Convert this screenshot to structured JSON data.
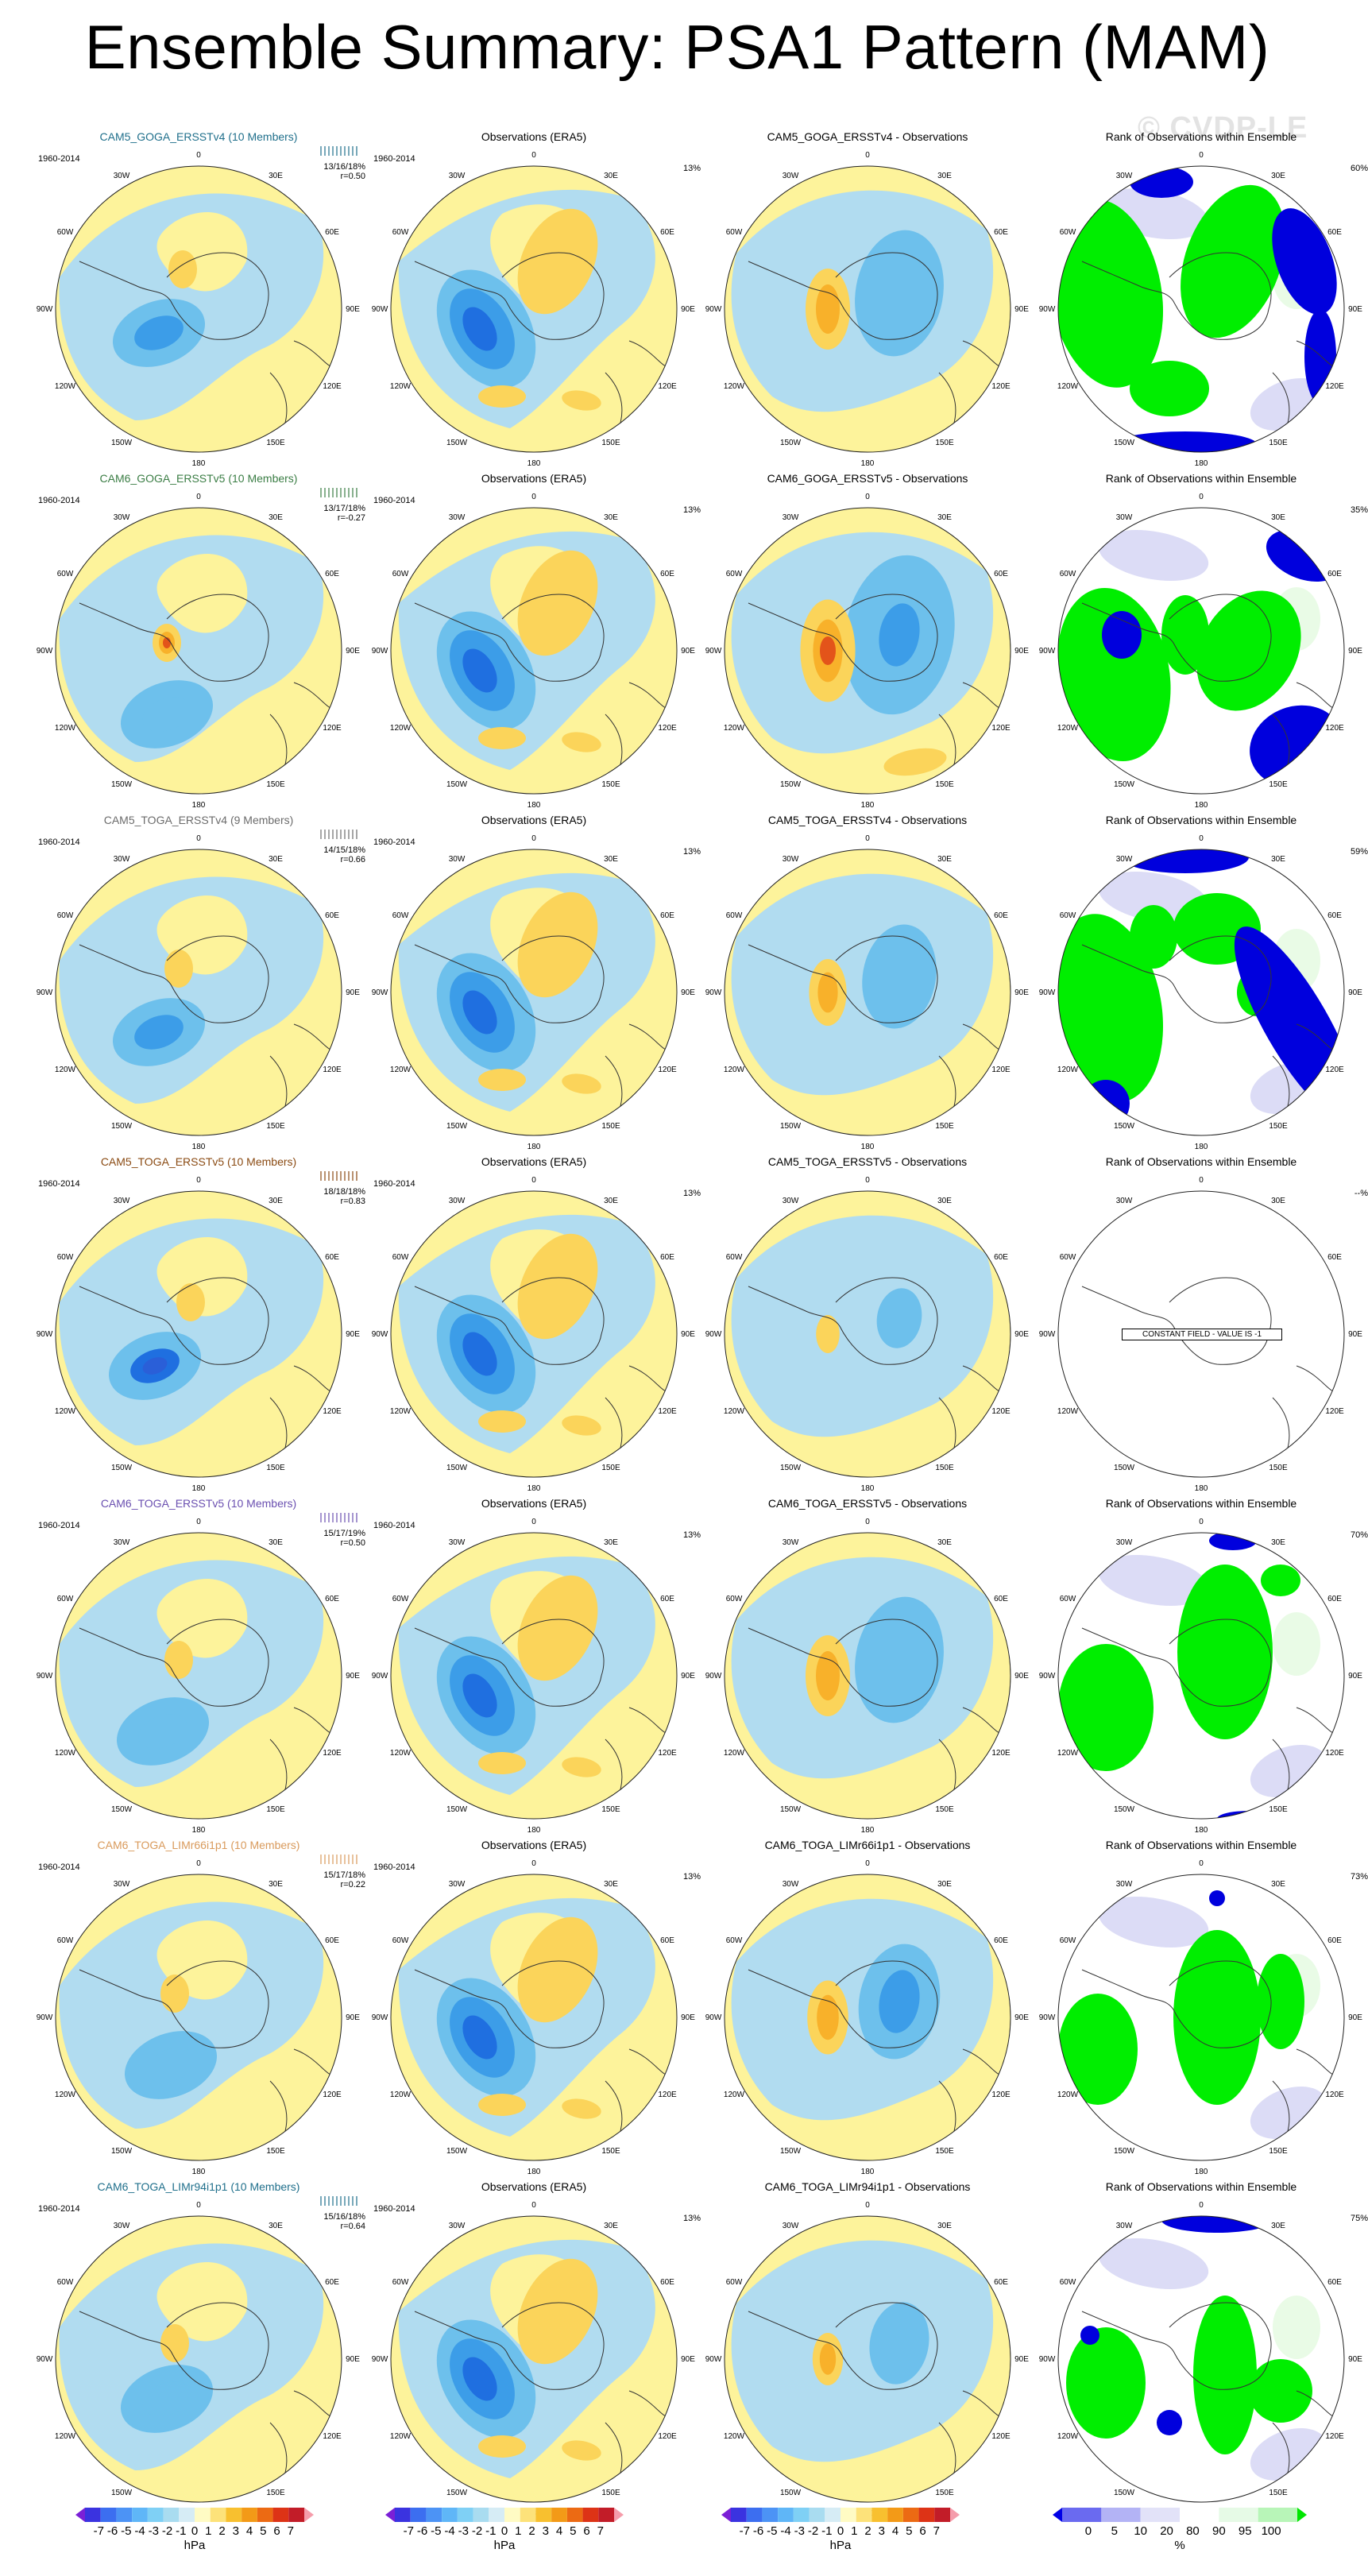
{
  "title": "Ensemble Summary: PSA1 Pattern (MAM)",
  "watermark": "© CVDP-LE",
  "period": "1960-2014",
  "obs_title": "Observations (ERA5)",
  "obs_pct": "13%",
  "rank_title": "Rank of Observations within Ensemble",
  "constant_field_text": "CONSTANT FIELD - VALUE IS -1",
  "lon_labels": [
    "0",
    "30E",
    "60E",
    "90E",
    "120E",
    "150E",
    "180",
    "150W",
    "120W",
    "90W",
    "60W",
    "30W"
  ],
  "rows": [
    {
      "model": "CAM5_GOGA_ERSSTv4 (10 Members)",
      "model_color": "#1f6f8b",
      "stats": "13/16/18%",
      "r": "r=0.50",
      "diff_title": "CAM5_GOGA_ERSSTv4 - Observations",
      "rank_pct": "60%",
      "variant": 0
    },
    {
      "model": "CAM6_GOGA_ERSSTv5 (10 Members)",
      "model_color": "#3a7d44",
      "stats": "13/17/18%",
      "r": "r=-0.27",
      "diff_title": "CAM6_GOGA_ERSSTv5 - Observations",
      "rank_pct": "35%",
      "variant": 1
    },
    {
      "model": "CAM5_TOGA_ERSSTv4 (9 Members)",
      "model_color": "#6b6b6b",
      "stats": "14/15/18%",
      "r": "r=0.66",
      "diff_title": "CAM5_TOGA_ERSSTv4 - Observations",
      "rank_pct": "59%",
      "variant": 2
    },
    {
      "model": "CAM5_TOGA_ERSSTv5 (10 Members)",
      "model_color": "#8a4a12",
      "stats": "18/18/18%",
      "r": "r=0.83",
      "diff_title": "CAM5_TOGA_ERSSTv5 - Observations",
      "rank_pct": "--%",
      "variant": 3
    },
    {
      "model": "CAM6_TOGA_ERSSTv5 (10 Members)",
      "model_color": "#6a4fb0",
      "stats": "15/17/19%",
      "r": "r=0.50",
      "diff_title": "CAM6_TOGA_ERSSTv5 - Observations",
      "rank_pct": "70%",
      "variant": 4
    },
    {
      "model": "CAM6_TOGA_LIMr66i1p1 (10 Members)",
      "model_color": "#d99a5b",
      "stats": "15/17/18%",
      "r": "r=0.22",
      "diff_title": "CAM6_TOGA_LIMr66i1p1 - Observations",
      "rank_pct": "73%",
      "variant": 5
    },
    {
      "model": "CAM6_TOGA_LIMr94i1p1 (10 Members)",
      "model_color": "#1f6f8b",
      "stats": "15/16/18%",
      "r": "r=0.64",
      "diff_title": "CAM6_TOGA_LIMr94i1p1 - Observations",
      "rank_pct": "75%",
      "variant": 6
    }
  ],
  "colorbar_hpa": {
    "ticks": [
      "-7",
      "-6",
      "-5",
      "-4",
      "-3",
      "-2",
      "-1",
      "0",
      "1",
      "2",
      "3",
      "4",
      "5",
      "6",
      "7"
    ],
    "unit": "hPa",
    "colors": [
      "#7b1fd6",
      "#3a33e0",
      "#3c6ef0",
      "#4c93f5",
      "#5fb6f7",
      "#7fd0f5",
      "#a9dcf0",
      "#d6ecf5",
      "#fffbc4",
      "#fde27a",
      "#f8c02f",
      "#f39a17",
      "#ec6a13",
      "#dd3316",
      "#c21c28",
      "#f59cab"
    ]
  },
  "colorbar_rank": {
    "ticks": [
      "0",
      "5",
      "10",
      "20",
      "80",
      "90",
      "95",
      "100"
    ],
    "unit": "%",
    "colors": [
      "#0000e6",
      "#6a6af0",
      "#b3b3f5",
      "#e2e2f8",
      "#ffffff",
      "#e6fae6",
      "#b8f5b8",
      "#00e600"
    ]
  },
  "fill_colors": {
    "yellow": "#fdf39b",
    "lightblue": "#b1dcf0",
    "medblue": "#6dc0ec",
    "blue": "#3c9de8",
    "deepblue": "#1f6fe0",
    "lightorange": "#fbd45a",
    "orange": "#f8b12a",
    "red": "#e3541a",
    "green": "#00ee00",
    "rank_blue": "#0000dd",
    "rank_lavender": "#dcdcf6",
    "rank_lightgreen": "#e9fbe6"
  }
}
